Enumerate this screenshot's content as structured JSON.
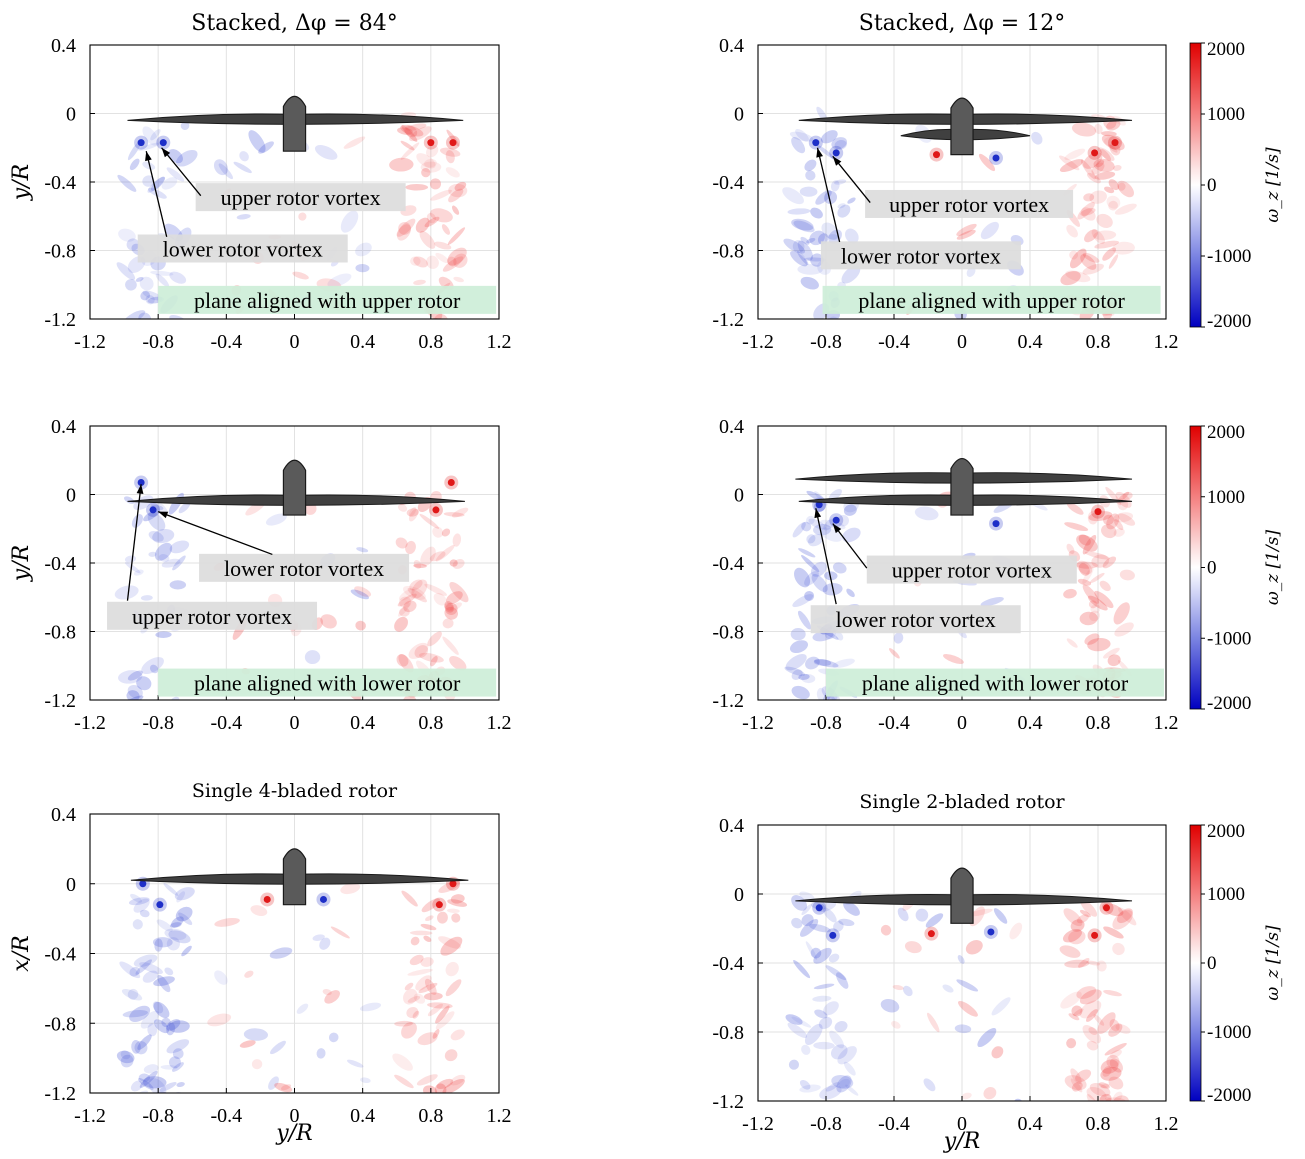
{
  "chart_data": [
    {
      "type": "heatmap",
      "title": "Stacked, Δφ = 84°",
      "xlim": [
        -1.2,
        1.2
      ],
      "ylim": [
        -1.2,
        0.4
      ],
      "xticks": [
        "-1.2",
        "-0.8",
        "-0.4",
        "0",
        "0.4",
        "0.8",
        "1.2"
      ],
      "yticks": [
        "0.4",
        "0",
        "-0.4",
        "-0.8",
        "-1.2"
      ],
      "xlabel": "",
      "ylabel": "y/R",
      "grid": true,
      "annotations": [
        {
          "text": "upper rotor vortex",
          "style": "gray"
        },
        {
          "text": "lower rotor vortex",
          "style": "gray"
        },
        {
          "text": "plane aligned with upper rotor",
          "style": "green"
        }
      ]
    },
    {
      "type": "heatmap",
      "title": "Stacked, Δφ = 12°",
      "xlim": [
        -1.2,
        1.2
      ],
      "ylim": [
        -1.2,
        0.4
      ],
      "xticks": [
        "-1.2",
        "-0.8",
        "-0.4",
        "0",
        "0.4",
        "0.8",
        "1.2"
      ],
      "yticks": [
        "0.4",
        "0",
        "-0.4",
        "-0.8",
        "-1.2"
      ],
      "xlabel": "",
      "ylabel": "",
      "grid": true,
      "annotations": [
        {
          "text": "upper rotor vortex",
          "style": "gray"
        },
        {
          "text": "lower rotor vortex",
          "style": "gray"
        },
        {
          "text": "plane aligned with upper rotor",
          "style": "green"
        }
      ]
    },
    {
      "type": "heatmap",
      "title": "",
      "xlim": [
        -1.2,
        1.2
      ],
      "ylim": [
        -1.2,
        0.4
      ],
      "xticks": [
        "-1.2",
        "-0.8",
        "-0.4",
        "0",
        "0.4",
        "0.8",
        "1.2"
      ],
      "yticks": [
        "0.4",
        "0",
        "-0.4",
        "-0.8",
        "-1.2"
      ],
      "xlabel": "",
      "ylabel": "y/R",
      "grid": true,
      "annotations": [
        {
          "text": "lower rotor vortex",
          "style": "gray"
        },
        {
          "text": "upper rotor vortex",
          "style": "gray"
        },
        {
          "text": "plane aligned with lower rotor",
          "style": "green"
        }
      ]
    },
    {
      "type": "heatmap",
      "title": "",
      "xlim": [
        -1.2,
        1.2
      ],
      "ylim": [
        -1.2,
        0.4
      ],
      "xticks": [
        "-1.2",
        "-0.8",
        "-0.4",
        "0",
        "0.4",
        "0.8",
        "1.2"
      ],
      "yticks": [
        "0.4",
        "0",
        "-0.4",
        "-0.8",
        "-1.2"
      ],
      "xlabel": "",
      "ylabel": "",
      "grid": true,
      "annotations": [
        {
          "text": "upper rotor vortex",
          "style": "gray"
        },
        {
          "text": "lower rotor vortex",
          "style": "gray"
        },
        {
          "text": "plane aligned with lower rotor",
          "style": "green"
        }
      ]
    },
    {
      "type": "heatmap",
      "title": "Single 4-bladed rotor",
      "xlim": [
        -1.2,
        1.2
      ],
      "ylim": [
        -1.2,
        0.4
      ],
      "xticks": [
        "-1.2",
        "-0.8",
        "-0.4",
        "0",
        "0.4",
        "0.8",
        "1.2"
      ],
      "yticks": [
        "0.4",
        "0",
        "-0.4",
        "-0.8",
        "-1.2"
      ],
      "xlabel": "y/R",
      "ylabel": "x/R",
      "grid": true,
      "annotations": []
    },
    {
      "type": "heatmap",
      "title": "Single 2-bladed rotor",
      "xlim": [
        -1.2,
        1.2
      ],
      "ylim": [
        -1.2,
        0.4
      ],
      "xticks": [
        "-1.2",
        "-0.8",
        "-0.4",
        "0",
        "0.4",
        "0.8",
        "1.2"
      ],
      "yticks": [
        "0.4",
        "0",
        "-0.4",
        "-0.8",
        "-1.2"
      ],
      "xlabel": "y/R",
      "ylabel": "",
      "grid": true,
      "annotations": []
    }
  ],
  "colorbar": {
    "label": "ω_z [1/s]",
    "ticks": [
      "2000",
      "1000",
      "0",
      "-1000",
      "-2000"
    ],
    "range": [
      -2000,
      2000
    ],
    "high_color": "#e00000",
    "mid_color": "#ffffff",
    "low_color": "#0000c0"
  },
  "colors": {
    "positive": "#f05050",
    "negative": "#4a5ad8",
    "rotor": "#404040",
    "gray_box": "#dcdcdc",
    "green_box": "#cdeed8"
  }
}
